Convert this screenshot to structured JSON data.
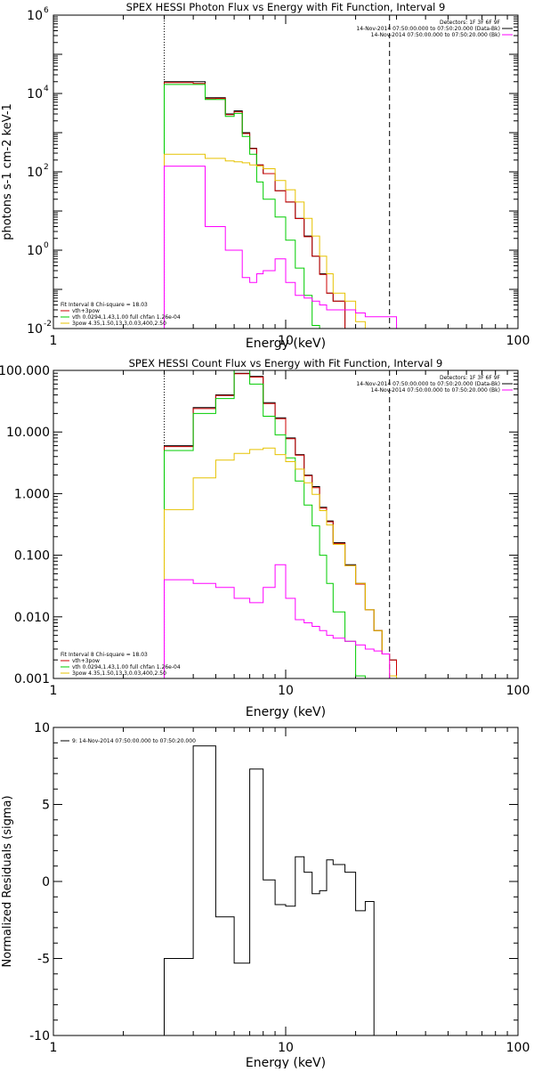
{
  "chart_data": [
    {
      "type": "line",
      "title": "SPEX HESSI Photon Flux vs Energy with Fit Function, Interval 9",
      "xlabel": "Energy (keV)",
      "ylabel": "photons s-1 cm-2 keV-1",
      "xscale": "log",
      "yscale": "log",
      "xlim": [
        1,
        100
      ],
      "ylim": [
        0.01,
        1000000
      ],
      "x_ticks": [
        {
          "value": 1,
          "label": "1"
        },
        {
          "value": 10,
          "label": "10"
        },
        {
          "value": 100,
          "label": "100"
        }
      ],
      "y_ticks": [
        {
          "value": 0.01,
          "label": "10",
          "sup": "-2"
        },
        {
          "value": 1,
          "label": "10",
          "sup": "0"
        },
        {
          "value": 100,
          "label": "10",
          "sup": "2"
        },
        {
          "value": 10000,
          "label": "10",
          "sup": "4"
        },
        {
          "value": 1000000,
          "label": "10",
          "sup": "6"
        }
      ],
      "vlines": [
        {
          "x": 3,
          "style": "dotted"
        },
        {
          "x": 28,
          "style": "dashed"
        }
      ],
      "legend_right_position": "top-right",
      "legend_right": [
        {
          "text": "Detectors: 1F 3F 6F 9F",
          "color": ""
        },
        {
          "text": "14-Nov-2014 07:50:00.000 to 07:50:20.000 (Data-Bk)",
          "color": "#000000"
        },
        {
          "text": "14-Nov-2014 07:50:00.000 to 07:50:20.000 (Bk)",
          "color": "#ff00ff"
        }
      ],
      "legend_left_position": "bottom-left",
      "legend_left": [
        {
          "text": "Fit Interval 8   Chi-square = 18.03",
          "color": ""
        },
        {
          "text": "vth+3pow",
          "color": "#cc0000"
        },
        {
          "text": "vth 0.0294,1.43,1.00  full chfan 1.26e-04",
          "color": "#00cc00"
        },
        {
          "text": "3pow 4.35,1.50,13.3,0.03,400,2.50",
          "color": "#e6c200"
        }
      ],
      "bin_edges": [
        3,
        3.5,
        4,
        4.5,
        5,
        5.5,
        6,
        6.5,
        7,
        7.5,
        8,
        9,
        10,
        11,
        12,
        13,
        14,
        15,
        16,
        18,
        20,
        22,
        24,
        26,
        28,
        30,
        33,
        36
      ],
      "series": [
        {
          "name": "",
          "color": "#000000",
          "values": [
            20000,
            20000,
            20000,
            7800,
            7800,
            3000,
            3600,
            1000,
            400,
            150,
            90,
            33,
            17,
            6.5,
            2.3,
            0.7,
            0.25,
            0.08,
            0.05
          ]
        },
        {
          "name": "",
          "color": "#cc0000",
          "values": [
            19000,
            19000,
            18000,
            7400,
            7500,
            2900,
            3400,
            950,
            390,
            150,
            90,
            33,
            17,
            6.4,
            2.2,
            0.7,
            0.24,
            0.08,
            0.05
          ]
        },
        {
          "name": "",
          "color": "#00cc00",
          "values": [
            17000,
            17000,
            17000,
            7000,
            7000,
            2600,
            3100,
            800,
            280,
            55,
            20,
            7,
            1.8,
            0.35,
            0.07,
            0.012,
            0.01,
            0.01,
            0.01
          ]
        },
        {
          "name": "",
          "color": "#e6c200",
          "values": [
            280,
            280,
            280,
            220,
            220,
            190,
            180,
            170,
            150,
            140,
            120,
            60,
            35,
            17,
            6.5,
            2.3,
            0.7,
            0.25,
            0.08,
            0.05,
            0.015,
            0.01,
            0.01,
            0.01
          ]
        },
        {
          "name": "",
          "color": "#ff00ff",
          "values": [
            140,
            140,
            140,
            4,
            4,
            1,
            1,
            0.2,
            0.15,
            0.25,
            0.3,
            0.6,
            0.15,
            0.07,
            0.06,
            0.05,
            0.04,
            0.03,
            0.03,
            0.03,
            0.025,
            0.02,
            0.02,
            0.02,
            0.02
          ]
        }
      ]
    },
    {
      "type": "line",
      "title": "SPEX HESSI Count Flux vs Energy with Fit Function, Interval 9",
      "xlabel": "Energy (keV)",
      "ylabel": "",
      "xscale": "log",
      "yscale": "log",
      "xlim": [
        1,
        100
      ],
      "ylim": [
        0.001,
        100
      ],
      "x_ticks": [
        {
          "value": 1,
          "label": "1"
        },
        {
          "value": 10,
          "label": "10"
        },
        {
          "value": 100,
          "label": "100"
        }
      ],
      "y_ticks": [
        {
          "value": 0.001,
          "label": "0.001"
        },
        {
          "value": 0.01,
          "label": "0.010"
        },
        {
          "value": 0.1,
          "label": "0.100"
        },
        {
          "value": 1,
          "label": "1.000"
        },
        {
          "value": 10,
          "label": "10.000"
        },
        {
          "value": 100,
          "label": "100.000"
        }
      ],
      "vlines": [
        {
          "x": 3,
          "style": "dotted"
        },
        {
          "x": 28,
          "style": "dashed"
        }
      ],
      "legend_right_position": "top-right",
      "legend_right": [
        {
          "text": "Detectors: 1F 3F 6F 9F",
          "color": ""
        },
        {
          "text": "14-Nov-2014 07:50:00.000 to 07:50:20.000 (Data-Bk)",
          "color": "#000000"
        },
        {
          "text": "14-Nov-2014 07:50:00.000 to 07:50:20.000 (Bk)",
          "color": "#ff00ff"
        }
      ],
      "legend_left_position": "bottom-left",
      "legend_left": [
        {
          "text": "Fit Interval 8   Chi-square = 18.03",
          "color": ""
        },
        {
          "text": "vth+3pow",
          "color": "#cc0000"
        },
        {
          "text": "vth 0.0294,1.43,1.00  full chfan 1.26e-04",
          "color": "#00cc00"
        },
        {
          "text": "3pow 4.35,1.50,13.3,0.03,400,2.50",
          "color": "#e6c200"
        }
      ],
      "bin_edges": [
        3,
        3.5,
        4,
        4.5,
        5,
        5.5,
        6,
        6.5,
        7,
        7.5,
        8,
        9,
        10,
        11,
        12,
        13,
        14,
        15,
        16,
        18,
        20,
        22,
        24,
        26,
        28,
        30,
        33,
        36
      ],
      "series": [
        {
          "name": "",
          "color": "#000000",
          "values": [
            6,
            6,
            25,
            25,
            40,
            40,
            90,
            90,
            80,
            80,
            30,
            17,
            8,
            4.3,
            2,
            1.3,
            0.6,
            0.36,
            0.16,
            0.07,
            0.035,
            0.013,
            0.006,
            0.0025,
            0.002
          ]
        },
        {
          "name": "",
          "color": "#cc0000",
          "values": [
            5.8,
            5.8,
            24,
            24,
            39,
            39,
            88,
            88,
            78,
            78,
            29,
            16.5,
            7.8,
            4.2,
            1.95,
            1.25,
            0.58,
            0.35,
            0.155,
            0.068,
            0.034,
            0.013,
            0.006,
            0.0025,
            0.002
          ]
        },
        {
          "name": "",
          "color": "#00cc00",
          "values": [
            5,
            5,
            20,
            20,
            35,
            35,
            100,
            100,
            60,
            60,
            18,
            9,
            3.8,
            1.6,
            0.65,
            0.3,
            0.1,
            0.035,
            0.012,
            0.004,
            0.0011
          ]
        },
        {
          "name": "",
          "color": "#e6c200",
          "values": [
            0.55,
            0.55,
            1.8,
            1.8,
            3.5,
            3.5,
            4.5,
            4.5,
            5.2,
            5.2,
            5.5,
            4.3,
            3.3,
            2.5,
            1.5,
            0.97,
            0.53,
            0.31,
            0.15,
            0.068,
            0.035,
            0.013,
            0.006,
            0.0025,
            0.0011,
            0.001,
            0.001
          ]
        },
        {
          "name": "",
          "color": "#ff00ff",
          "values": [
            0.04,
            0.04,
            0.035,
            0.035,
            0.03,
            0.03,
            0.02,
            0.02,
            0.017,
            0.017,
            0.03,
            0.07,
            0.02,
            0.009,
            0.008,
            0.007,
            0.006,
            0.005,
            0.0045,
            0.004,
            0.0035,
            0.003,
            0.0028,
            0.0025,
            0.001
          ]
        }
      ]
    },
    {
      "type": "line",
      "title": "",
      "xlabel": "Energy (keV)",
      "ylabel": "Normalized Residuals (sigma)",
      "xscale": "log",
      "yscale": "linear",
      "xlim": [
        1,
        100
      ],
      "ylim": [
        -10,
        10
      ],
      "x_ticks": [
        {
          "value": 1,
          "label": "1"
        },
        {
          "value": 10,
          "label": "10"
        },
        {
          "value": 100,
          "label": "100"
        }
      ],
      "y_ticks": [
        {
          "value": -10,
          "label": "-10"
        },
        {
          "value": -5,
          "label": "-5"
        },
        {
          "value": 0,
          "label": "0"
        },
        {
          "value": 5,
          "label": "5"
        },
        {
          "value": 10,
          "label": "10"
        }
      ],
      "legend_left_position": "top-left",
      "legend_left": [
        {
          "text": "9: 14-Nov-2014 07:50:00.000 to 07:50:20.000",
          "color": "#000000"
        }
      ],
      "bin_edges": [
        3,
        3.5,
        4,
        4.5,
        5,
        5.5,
        6,
        6.5,
        7,
        7.5,
        8,
        9,
        10,
        11,
        12,
        13,
        14,
        15,
        16,
        18,
        20,
        22,
        24,
        26,
        28
      ],
      "series": [
        {
          "name": "",
          "color": "#000000",
          "values": [
            -5,
            -5,
            8.8,
            8.8,
            -2.3,
            -2.3,
            -5.3,
            -5.3,
            7.3,
            7.3,
            0.1,
            -1.5,
            -1.6,
            1.6,
            0.6,
            -0.8,
            -0.6,
            1.4,
            1.1,
            0.6,
            -1.9,
            -1.3
          ]
        }
      ]
    }
  ]
}
